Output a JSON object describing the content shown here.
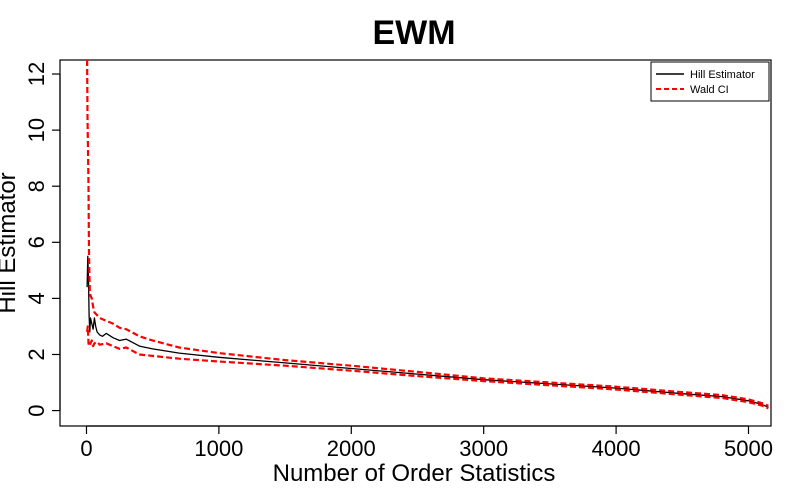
{
  "chart_data": {
    "type": "line",
    "title": "EWM",
    "xlabel": "Number of Order Statistics",
    "ylabel": "Hill Estimator",
    "xlim": [
      -200,
      5170
    ],
    "ylim": [
      -0.55,
      12.5
    ],
    "x_ticks": [
      0,
      1000,
      2000,
      3000,
      4000,
      5000
    ],
    "x_tick_labels": [
      "0",
      "1000",
      "2000",
      "3000",
      "4000",
      "5000"
    ],
    "y_ticks": [
      0,
      2,
      4,
      6,
      8,
      10,
      12
    ],
    "y_tick_labels": [
      "0",
      "2",
      "4",
      "6",
      "8",
      "10",
      "12"
    ],
    "legend": {
      "position": "top-right",
      "entries": [
        {
          "label": "Hill Estimator",
          "color": "#000000",
          "style": "solid"
        },
        {
          "label": "Wald CI",
          "color": "#ff0000",
          "style": "dashed"
        }
      ]
    },
    "series": [
      {
        "name": "Hill Estimator",
        "color": "#000000",
        "style": "solid",
        "x": [
          5,
          10,
          15,
          20,
          25,
          30,
          40,
          50,
          60,
          70,
          80,
          100,
          120,
          150,
          200,
          250,
          300,
          400,
          500,
          700,
          1000,
          1500,
          2000,
          2500,
          3000,
          3500,
          4000,
          4500,
          4800,
          5000,
          5100,
          5150
        ],
        "y": [
          4.4,
          5.5,
          4.7,
          3.4,
          2.8,
          3.3,
          3.1,
          2.9,
          3.3,
          3.0,
          2.8,
          2.7,
          2.65,
          2.75,
          2.6,
          2.5,
          2.55,
          2.3,
          2.2,
          2.05,
          1.9,
          1.7,
          1.5,
          1.3,
          1.1,
          0.95,
          0.8,
          0.6,
          0.5,
          0.35,
          0.22,
          0.12
        ]
      },
      {
        "name": "Wald CI upper",
        "color": "#ff0000",
        "style": "dashed",
        "x": [
          5,
          8,
          12,
          15,
          18,
          20,
          25,
          30,
          40,
          50,
          60,
          80,
          100,
          150,
          200,
          250,
          300,
          400,
          500,
          700,
          1000,
          1500,
          2000,
          2500,
          3000,
          3500,
          4000,
          4500,
          4800,
          5000,
          5100,
          5150
        ],
        "y": [
          12.5,
          10.5,
          9.0,
          8.0,
          6.0,
          5.4,
          4.3,
          4.1,
          4.0,
          3.7,
          3.5,
          3.4,
          3.3,
          3.2,
          3.1,
          2.95,
          2.9,
          2.65,
          2.5,
          2.25,
          2.05,
          1.8,
          1.6,
          1.38,
          1.15,
          1.0,
          0.85,
          0.66,
          0.55,
          0.4,
          0.27,
          0.17
        ]
      },
      {
        "name": "Wald CI lower",
        "color": "#ff0000",
        "style": "dashed",
        "x": [
          5,
          10,
          15,
          20,
          25,
          30,
          40,
          50,
          60,
          80,
          100,
          150,
          200,
          250,
          300,
          400,
          500,
          700,
          1000,
          1500,
          2000,
          2500,
          3000,
          3500,
          4000,
          4500,
          4800,
          5000,
          5100,
          5150
        ],
        "y": [
          2.8,
          3.0,
          2.4,
          2.3,
          2.35,
          2.4,
          2.5,
          2.3,
          2.4,
          2.45,
          2.35,
          2.4,
          2.3,
          2.2,
          2.25,
          2.0,
          1.95,
          1.85,
          1.75,
          1.6,
          1.42,
          1.23,
          1.05,
          0.9,
          0.75,
          0.56,
          0.45,
          0.3,
          0.18,
          0.08
        ]
      }
    ]
  }
}
